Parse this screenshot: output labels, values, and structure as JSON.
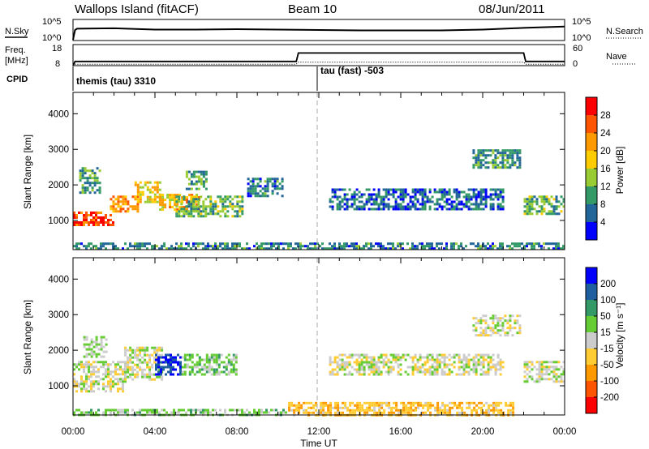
{
  "header": {
    "title": "Wallops Island (fitACF)",
    "beam": "Beam 10",
    "date": "08/Jun/2011"
  },
  "sky_panel": {
    "left_label": "N.Sky",
    "right_label": "N.Search",
    "left_ticks": [
      "10^5",
      "10^0"
    ],
    "right_ticks": [
      "10^5",
      "10^0"
    ]
  },
  "freq_panel": {
    "left_label_1": "Freq.",
    "left_label_2": "[MHz]",
    "right_label": "Nave",
    "left_ticks": [
      "18",
      "8"
    ],
    "right_ticks": [
      "60",
      "0"
    ],
    "cpid_label": "CPID"
  },
  "cpid": [
    {
      "label": "themis (tau) 3310",
      "start": "00:00",
      "end": "12:00"
    },
    {
      "label": "tau (fast) -503",
      "start": "12:00",
      "end": "24:00"
    }
  ],
  "power_panel": {
    "ylabel": "Slant Range [km]",
    "cbar_label": "Power [dB]",
    "cbar_ticks": [
      "28",
      "24",
      "20",
      "16",
      "12",
      "8",
      "4"
    ],
    "cbar_colors": [
      "#ff0000",
      "#ff5500",
      "#ff9900",
      "#ffcc00",
      "#99cc33",
      "#339966",
      "#226699",
      "#0000ff"
    ]
  },
  "velocity_panel": {
    "ylabel": "Slant Range [km]",
    "cbar_label": "Velocity [m s⁻¹]",
    "cbar_ticks": [
      "200",
      "100",
      "50",
      "15",
      "-15",
      "-50",
      "-100",
      "-200"
    ],
    "cbar_colors": [
      "#0000ff",
      "#1f5fa0",
      "#339966",
      "#66cc33",
      "#cccccc",
      "#ffcc33",
      "#ff9900",
      "#ff5500",
      "#ff0000"
    ]
  },
  "x_axis": {
    "label": "Time UT",
    "ticks": [
      "00:00",
      "04:00",
      "08:00",
      "12:00",
      "16:00",
      "20:00",
      "00:00"
    ]
  },
  "chart_data": [
    {
      "type": "line",
      "name": "N.Sky",
      "x_hours": [
        0,
        0.1,
        0.2,
        2,
        4,
        6,
        8,
        10,
        12,
        14,
        16,
        18,
        20,
        22,
        24
      ],
      "values_log10": [
        0.2,
        2.5,
        2.8,
        2.9,
        2.6,
        2.6,
        2.7,
        2.6,
        2.5,
        2.4,
        2.4,
        2.4,
        2.6,
        3.0,
        3.3
      ],
      "ylim_log10": [
        0,
        5
      ]
    },
    {
      "type": "line",
      "name": "Freq [MHz]",
      "x_hours": [
        0,
        0.1,
        10.9,
        11.0,
        22.0,
        22.1,
        24
      ],
      "values": [
        8,
        10,
        10,
        14,
        14,
        10,
        10
      ],
      "ylim": [
        8,
        18
      ]
    },
    {
      "type": "line",
      "name": "Nave",
      "x_hours": [
        0,
        0.1,
        10.9,
        11.0,
        22.0,
        22.1,
        24
      ],
      "values": [
        0,
        4,
        4,
        10,
        10,
        4,
        4
      ],
      "ylim": [
        0,
        60
      ]
    },
    {
      "type": "heatmap",
      "name": "Power [dB]",
      "xlabel": "Time UT",
      "ylabel": "Slant Range [km]",
      "xlim_hours": [
        0,
        24
      ],
      "ylim_km": [
        180,
        4600
      ],
      "y_ticks_km": [
        1000,
        2000,
        3000,
        4000
      ],
      "clim": [
        0,
        32
      ],
      "regions": [
        {
          "t0": 0.0,
          "t1": 2.0,
          "r0": 850,
          "r1": 1250,
          "value": 27
        },
        {
          "t0": 1.8,
          "t1": 3.2,
          "r0": 1250,
          "r1": 1700,
          "value": 22
        },
        {
          "t0": 3.0,
          "t1": 4.3,
          "r0": 1500,
          "r1": 2100,
          "value": 18
        },
        {
          "t0": 4.2,
          "t1": 6.2,
          "r0": 1300,
          "r1": 1750,
          "value": 20
        },
        {
          "t0": 0.3,
          "t1": 1.3,
          "r0": 1800,
          "r1": 2500,
          "value": 10
        },
        {
          "t0": 5.0,
          "t1": 8.3,
          "r0": 1100,
          "r1": 1700,
          "value": 12
        },
        {
          "t0": 5.5,
          "t1": 6.5,
          "r0": 1900,
          "r1": 2400,
          "value": 11
        },
        {
          "t0": 8.5,
          "t1": 10.2,
          "r0": 1700,
          "r1": 2200,
          "value": 8
        },
        {
          "t0": 12.5,
          "t1": 21.0,
          "r0": 1350,
          "r1": 1900,
          "value": 6
        },
        {
          "t0": 19.5,
          "t1": 21.8,
          "r0": 2500,
          "r1": 3000,
          "value": 9
        },
        {
          "t0": 22.0,
          "t1": 24.0,
          "r0": 1200,
          "r1": 1700,
          "value": 12
        },
        {
          "t0": 0.0,
          "t1": 24.0,
          "r0": 200,
          "r1": 380,
          "value": 8
        }
      ]
    },
    {
      "type": "heatmap",
      "name": "Velocity [m s⁻¹]",
      "xlabel": "Time UT",
      "ylabel": "Slant Range [km]",
      "xlim_hours": [
        0,
        24
      ],
      "ylim_km": [
        180,
        4600
      ],
      "y_ticks_km": [
        1000,
        2000,
        3000,
        4000
      ],
      "clim": [
        -250,
        250
      ],
      "regions": [
        {
          "t0": 0.0,
          "t1": 2.5,
          "r0": 850,
          "r1": 1700,
          "value": 0
        },
        {
          "t0": 2.5,
          "t1": 4.3,
          "r0": 1200,
          "r1": 2100,
          "value": 0
        },
        {
          "t0": 4.0,
          "t1": 5.3,
          "r0": 1300,
          "r1": 1900,
          "value": 200
        },
        {
          "t0": 5.3,
          "t1": 8.0,
          "r0": 1300,
          "r1": 1900,
          "value": 30
        },
        {
          "t0": 0.5,
          "t1": 1.6,
          "r0": 1800,
          "r1": 2400,
          "value": 20
        },
        {
          "t0": 12.5,
          "t1": 21.0,
          "r0": 1300,
          "r1": 1900,
          "value": 0
        },
        {
          "t0": 19.5,
          "t1": 21.8,
          "r0": 2400,
          "r1": 3000,
          "value": 0
        },
        {
          "t0": 22.0,
          "t1": 24.0,
          "r0": 1100,
          "r1": 1700,
          "value": 0
        },
        {
          "t0": 10.5,
          "t1": 21.5,
          "r0": 200,
          "r1": 550,
          "value": -40
        },
        {
          "t0": 0.0,
          "t1": 10.5,
          "r0": 200,
          "r1": 350,
          "value": 25
        }
      ]
    }
  ]
}
